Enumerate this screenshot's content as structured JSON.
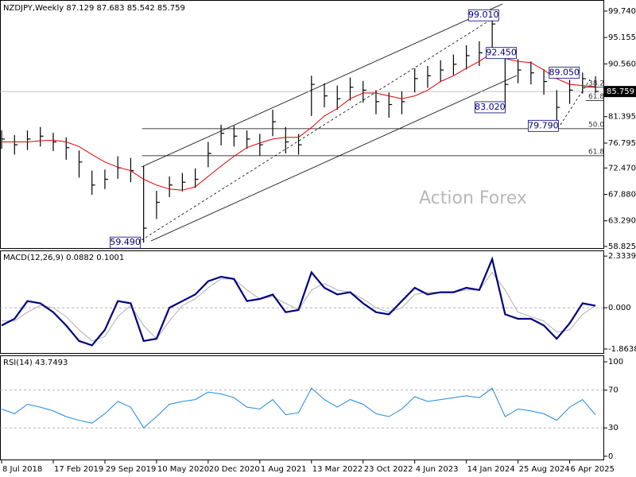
{
  "chart_data": {
    "type": "ohlc",
    "title": "NZDJPY,Weekly  87.129 87.683 85.542 85.759",
    "watermark": "Action Forex",
    "x": [
      0,
      8,
      16,
      24,
      32,
      40,
      48,
      56,
      64,
      72,
      80,
      88,
      96,
      104,
      112,
      120,
      128,
      136,
      144,
      152,
      160,
      168,
      176,
      184,
      192,
      200,
      208,
      216,
      224,
      232,
      240,
      248,
      256,
      264,
      272,
      280,
      288,
      296,
      304,
      312,
      320,
      328,
      336,
      344,
      352,
      360,
      368
    ],
    "xlim": [
      -1,
      373.4
    ],
    "xticks": [
      {
        "value": 0,
        "label": "8 Jul 2018"
      },
      {
        "value": 32,
        "label": "17 Feb 2019"
      },
      {
        "value": 64,
        "label": "29 Sep 2019"
      },
      {
        "value": 96,
        "label": "10 May 2020"
      },
      {
        "value": 128,
        "label": "20 Dec 2020"
      },
      {
        "value": 160,
        "label": "1 Aug 2021"
      },
      {
        "value": 192,
        "label": "13 Mar 2022"
      },
      {
        "value": 224,
        "label": "23 Oct 2022"
      },
      {
        "value": 256,
        "label": "4 Jun 2023"
      },
      {
        "value": 288,
        "label": "14 Jan 2024"
      },
      {
        "value": 320,
        "label": "25 Aug 2024"
      },
      {
        "value": 352,
        "label": "6 Apr 2025"
      }
    ],
    "ylim": [
      58.55,
      101.67
    ],
    "yticks": [
      {
        "value": 99.74,
        "label": "99.740"
      },
      95.155,
      {
        "value": 90.56,
        "label": "90.560"
      },
      81.395,
      76.795,
      {
        "value": 72.47,
        "label": "72.470"
      },
      {
        "value": 67.88,
        "label": "67.880"
      },
      {
        "value": 63.29,
        "label": "63.290"
      },
      58.825
    ],
    "color": "#000000",
    "high": [
      79.0,
      78.2,
      79.0,
      79.6,
      78.6,
      77.8,
      75.5,
      72.0,
      72.2,
      74.5,
      74.2,
      72.8,
      68.5,
      71.0,
      71.6,
      72.4,
      77.0,
      80.0,
      79.8,
      79.0,
      78.4,
      82.6,
      79.6,
      78.4,
      88.5,
      87.2,
      86.8,
      88.2,
      87.6,
      86.0,
      85.6,
      85.8,
      89.8,
      90.2,
      91.2,
      92.2,
      93.8,
      94.5,
      99.01,
      93.0,
      91.4,
      91.0,
      89.6,
      86.0,
      87.8,
      89.05,
      88.4
    ],
    "low": [
      75.8,
      74.8,
      75.6,
      76.2,
      75.4,
      73.9,
      70.8,
      67.8,
      68.8,
      70.6,
      70.0,
      59.49,
      63.6,
      67.4,
      68.4,
      69.0,
      72.6,
      76.4,
      76.2,
      75.8,
      74.6,
      78.0,
      75.0,
      74.8,
      81.5,
      83.0,
      82.6,
      84.2,
      83.8,
      81.8,
      81.2,
      81.8,
      85.6,
      86.4,
      87.4,
      88.6,
      89.6,
      90.2,
      92.0,
      83.02,
      87.2,
      87.0,
      85.2,
      79.79,
      83.6,
      85.4,
      85.542
    ],
    "close": [
      77.5,
      76.5,
      77.5,
      78.0,
      77.0,
      76.0,
      73.5,
      69.5,
      70.5,
      72.5,
      72.0,
      62.0,
      66.5,
      69.5,
      70.0,
      70.5,
      75.0,
      78.5,
      78.0,
      77.5,
      76.5,
      80.5,
      77.0,
      76.5,
      87.0,
      85.0,
      84.5,
      86.5,
      86.0,
      84.0,
      83.5,
      84.0,
      88.0,
      88.5,
      89.5,
      90.5,
      92.0,
      92.5,
      97.5,
      87.0,
      89.5,
      89.0,
      87.5,
      83.0,
      86.0,
      88.0,
      85.759
    ],
    "ma": {
      "color": "#dd0000",
      "values": [
        77.0,
        77.0,
        77.0,
        77.2,
        77.3,
        77.0,
        76.2,
        74.8,
        73.5,
        72.6,
        72.0,
        70.5,
        69.5,
        68.8,
        68.6,
        69.2,
        71.0,
        72.8,
        74.5,
        76.0,
        76.8,
        77.5,
        77.8,
        77.8,
        79.5,
        81.5,
        82.8,
        84.5,
        85.5,
        85.5,
        85.0,
        84.5,
        85.0,
        86.0,
        87.5,
        88.5,
        89.8,
        91.0,
        92.5,
        91.5,
        91.0,
        90.8,
        89.5,
        88.0,
        87.0,
        86.8,
        86.6
      ]
    },
    "last_price": 85.759,
    "annotations": [
      {
        "label": "99.010",
        "value": 99.01,
        "x": 309
      },
      {
        "label": "92.450",
        "value": 92.45,
        "x": 320
      },
      {
        "label": "89.050",
        "value": 89.05,
        "x": 359
      },
      {
        "label": "83.020",
        "value": 83.02,
        "x": 313
      },
      {
        "label": "79.790",
        "value": 79.79,
        "x": 346
      },
      {
        "label": "59.490",
        "value": 59.49,
        "x": 87
      }
    ],
    "fib_levels": [
      {
        "label": "38.2",
        "value": 86.5,
        "start": 360
      },
      {
        "label": "61.8",
        "value": 84.2,
        "start": 362
      },
      {
        "label": "50.0",
        "value": 79.3,
        "start": 87
      },
      {
        "label": "61.8",
        "value": 74.6,
        "start": 87
      }
    ],
    "indicators": [
      {
        "type": "line",
        "title": "MACD(12,26,9) 0.0882 0.1001",
        "ylim": [
          -2.08,
          2.59
        ],
        "yticks": [
          2.3339,
          {
            "value": 0,
            "label": "0.000"
          },
          -1.8638
        ],
        "levels": [
          0
        ],
        "series": [
          {
            "color": "#00007f",
            "values": [
              -0.8,
              -0.5,
              0.3,
              0.2,
              -0.2,
              -0.8,
              -1.5,
              -1.7,
              -1.0,
              0.3,
              0.2,
              -1.5,
              -1.4,
              0.0,
              0.3,
              0.6,
              1.2,
              1.4,
              1.3,
              0.3,
              0.4,
              0.6,
              -0.2,
              -0.1,
              1.6,
              0.9,
              0.6,
              0.7,
              0.2,
              -0.2,
              -0.3,
              0.3,
              0.9,
              0.6,
              0.7,
              0.7,
              0.9,
              0.8,
              2.2,
              -0.3,
              -0.5,
              -0.5,
              -0.8,
              -1.4,
              -0.7,
              0.2,
              0.0882
            ]
          },
          {
            "color": "#b0b0b0",
            "values": [
              -0.6,
              -0.6,
              -0.2,
              0.1,
              0.0,
              -0.4,
              -1.0,
              -1.5,
              -1.3,
              -0.4,
              0.1,
              -0.8,
              -1.4,
              -0.6,
              0.1,
              0.4,
              0.9,
              1.3,
              1.3,
              0.8,
              0.4,
              0.5,
              0.2,
              -0.1,
              0.8,
              1.1,
              0.8,
              0.7,
              0.4,
              0.0,
              -0.2,
              0.0,
              0.6,
              0.7,
              0.7,
              0.7,
              0.8,
              0.8,
              1.6,
              0.8,
              -0.2,
              -0.4,
              -0.6,
              -1.1,
              -1.0,
              -0.3,
              0.1001
            ]
          }
        ]
      },
      {
        "type": "line",
        "title": "RSI(14) 43.7493",
        "ylim": [
          -4.3,
          106.8
        ],
        "yticks": [
          100,
          70,
          30,
          0
        ],
        "levels": [
          70,
          30
        ],
        "series": [
          {
            "color": "#1e88e5",
            "values": [
              50,
              45,
              55,
              52,
              48,
              42,
              38,
              35,
              45,
              58,
              52,
              30,
              42,
              55,
              58,
              60,
              68,
              66,
              62,
              52,
              50,
              60,
              44,
              46,
              72,
              60,
              52,
              60,
              55,
              45,
              42,
              50,
              63,
              58,
              60,
              62,
              64,
              62,
              72,
              42,
              50,
              48,
              45,
              38,
              52,
              60,
              43.7493
            ]
          }
        ]
      }
    ]
  }
}
